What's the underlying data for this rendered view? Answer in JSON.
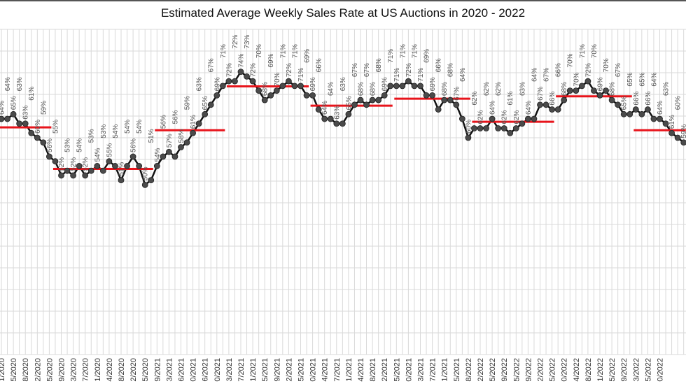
{
  "chart_data": {
    "type": "line",
    "title": "Estimated Average Weekly Sales Rate at US Auctions in 2020 - 2022",
    "xlabel": "",
    "ylabel": "",
    "ylim": [
      14,
      83
    ],
    "grid": true,
    "legend": "none",
    "value_suffix": "%",
    "colors": {
      "line": "#111111",
      "marker": "#4a4a4a",
      "average": "#e8141b",
      "grid": "#d9d9d9",
      "data_label": "#555555"
    },
    "x_tick_labels": [
      "1/2020",
      "5/2020",
      "8/2020",
      "2/2020",
      "5/2020",
      "9/2020",
      "3/2020",
      "7/2020",
      "1/2020",
      "4/2020",
      "8/2020",
      "2/2020",
      "5/2020",
      "9/2021",
      "3/2021",
      "6/2021",
      "0/2021",
      "6/2021",
      "0/2021",
      "3/2021",
      "7/2021",
      "1/2021",
      "5/2021",
      "9/2021",
      "2/2021",
      "5/2021",
      "0/2021",
      "4/2021",
      "7/2021",
      "1/2021",
      "4/2021",
      "8/2021",
      "2/2021",
      "5/2021",
      "0/2021",
      "3/2021",
      "7/2021",
      "1/2021",
      "5/2021",
      "8/2022",
      "2/2022",
      "5/2022",
      "9/2022",
      "5/2022",
      "9/2022",
      "2/2022",
      "5/2022",
      "0/2022",
      "4/2022",
      "8/2022",
      "1/2022",
      "5/2022",
      "9/2022",
      "3/2022",
      "5/2022",
      "0/2022"
    ],
    "series": [
      {
        "values": [
          64,
          64,
          65,
          63,
          63,
          61,
          60,
          59,
          56,
          55,
          52,
          53,
          52,
          54,
          52,
          53,
          54,
          53,
          55,
          54,
          51,
          54,
          56,
          54,
          50,
          51,
          54,
          56,
          57,
          56,
          58,
          59,
          61,
          63,
          65,
          67,
          69,
          71,
          72,
          72,
          74,
          73,
          72,
          70,
          68,
          69,
          70,
          71,
          72,
          71,
          71,
          69,
          69,
          66,
          64,
          64,
          63,
          63,
          65,
          67,
          68,
          67,
          68,
          68,
          69,
          71,
          71,
          71,
          72,
          71,
          71,
          69,
          69,
          66,
          68,
          68,
          67,
          64,
          60,
          62,
          62,
          62,
          64,
          62,
          62,
          61,
          62,
          63,
          64,
          64,
          67,
          67,
          66,
          66,
          68,
          70,
          70,
          71,
          72,
          70,
          69,
          70,
          68,
          67,
          65,
          65,
          66,
          65,
          66,
          64,
          64,
          63,
          61,
          60,
          59
        ]
      }
    ],
    "quarterly_averages": [
      {
        "value": 62.2,
        "weeks": [
          0,
          8
        ]
      },
      {
        "value": 53.4,
        "weeks": [
          9,
          25
        ]
      },
      {
        "value": 61.6,
        "weeks": [
          26,
          37
        ]
      },
      {
        "value": 70.9,
        "weeks": [
          38,
          51
        ]
      },
      {
        "value": 66.8,
        "weeks": [
          52,
          65
        ]
      },
      {
        "value": 68.3,
        "weeks": [
          66,
          78
        ]
      },
      {
        "value": 63.4,
        "weeks": [
          79,
          92
        ]
      },
      {
        "value": 68.8,
        "weeks": [
          93,
          105
        ]
      },
      {
        "value": 61.6,
        "weeks": [
          106,
          114
        ]
      }
    ]
  }
}
